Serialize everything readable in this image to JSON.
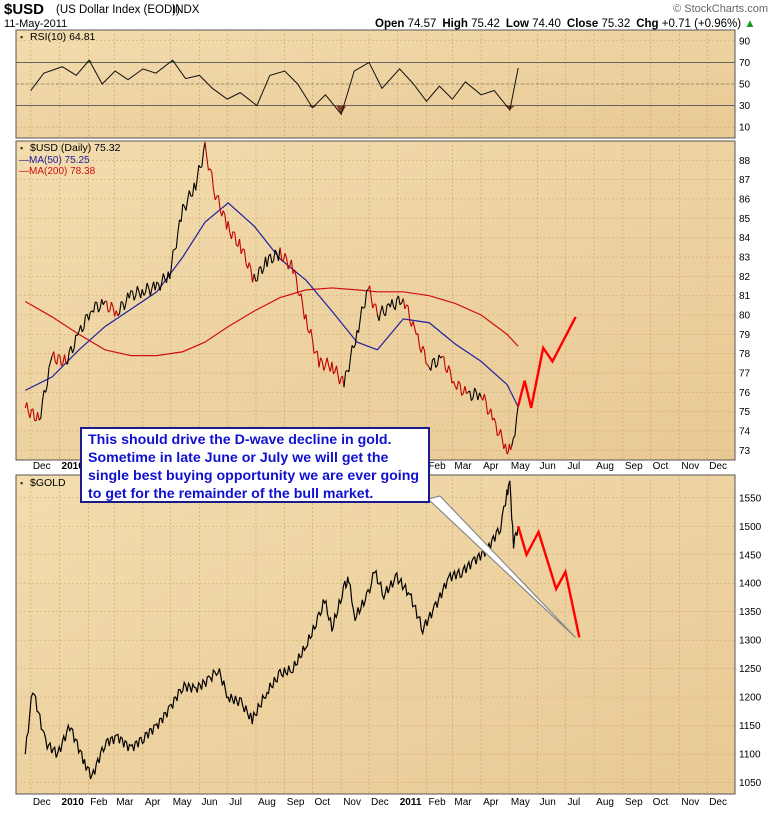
{
  "header": {
    "symbol": "$USD",
    "description": "(US Dollar Index (EOD))",
    "exchange": "INDX",
    "date": "11-May-2011",
    "quote_parts": [
      {
        "label": "Open",
        "value": "74.57"
      },
      {
        "label": "High",
        "value": "75.42"
      },
      {
        "label": "Low",
        "value": "74.40"
      },
      {
        "label": "Close",
        "value": "75.32"
      },
      {
        "label": "Chg",
        "value": "+0.71 (+0.96%)"
      }
    ],
    "logo": "© StockCharts.com",
    "change_color": "#1a9a1a"
  },
  "annotation": {
    "lines": [
      "This should drive the D-wave decline in gold.",
      "Sometime in late June or July we will get the",
      "single best buying opportunity we are ever going",
      "to get for the remainder of the bull market."
    ],
    "text_color": "#1010d0"
  },
  "colors": {
    "panel_bg": "#e8c994",
    "rsi_overbought_fill": "#3b7a30",
    "rsi_oversold_fill": "#8a3a2a",
    "ma50": "#2020a0",
    "ma200": "#d01010",
    "price_up": "#000000",
    "price_down": "#c00000",
    "projection": "#ff0000"
  },
  "chart_data": [
    {
      "type": "line",
      "panel": "rsi",
      "title": "RSI(10) 64.81",
      "ylim": [
        0,
        100
      ],
      "y_ticks": [
        10,
        30,
        50,
        70,
        90
      ],
      "reference_lines": [
        30,
        50,
        70
      ],
      "dates": [
        "2009-12-01",
        "2009-12-15",
        "2010-01-04",
        "2010-01-19",
        "2010-02-02",
        "2010-02-16",
        "2010-03-02",
        "2010-03-16",
        "2010-04-01",
        "2010-04-15",
        "2010-05-03",
        "2010-05-17",
        "2010-06-01",
        "2010-06-15",
        "2010-07-01",
        "2010-07-15",
        "2010-08-02",
        "2010-08-16",
        "2010-09-01",
        "2010-09-15",
        "2010-10-01",
        "2010-10-15",
        "2010-11-01",
        "2010-11-15",
        "2010-12-01",
        "2010-12-15",
        "2011-01-03",
        "2011-01-18",
        "2011-02-01",
        "2011-02-15",
        "2011-03-01",
        "2011-03-15",
        "2011-04-01",
        "2011-04-15",
        "2011-05-02",
        "2011-05-11"
      ],
      "values": [
        44,
        60,
        66,
        58,
        72,
        50,
        62,
        54,
        64,
        60,
        72,
        55,
        58,
        46,
        36,
        42,
        30,
        58,
        62,
        50,
        28,
        40,
        22,
        62,
        70,
        46,
        64,
        50,
        34,
        48,
        36,
        52,
        40,
        44,
        26,
        64.81
      ]
    },
    {
      "type": "line",
      "panel": "usd",
      "title": "$USD (Daily) 75.32",
      "legend": [
        {
          "name": "MA(50) 75.25",
          "color": "#2020a0"
        },
        {
          "name": "MA(200) 78.38",
          "color": "#d01010"
        }
      ],
      "legend_position": "top-left",
      "ylim": [
        72.5,
        89
      ],
      "y_ticks": [
        73,
        74,
        75,
        76,
        77,
        78,
        79,
        80,
        81,
        82,
        83,
        84,
        85,
        86,
        87,
        88
      ],
      "x_tick_labels": [
        "Dec",
        "2010",
        "Feb",
        "Mar",
        "Apr",
        "May",
        "Jun",
        "Jul",
        "Aug",
        "Sep",
        "Oct",
        "Nov",
        "Dec",
        "2011",
        "Feb",
        "Mar",
        "Apr",
        "May",
        "Jun",
        "Jul",
        "Aug",
        "Sep",
        "Oct",
        "Nov",
        "Dec"
      ],
      "series": [
        {
          "name": "$USD (Daily)",
          "dates": [
            "2009-11-25",
            "2009-12-10",
            "2009-12-24",
            "2010-01-08",
            "2010-01-22",
            "2010-02-05",
            "2010-02-19",
            "2010-03-05",
            "2010-03-19",
            "2010-04-02",
            "2010-04-16",
            "2010-04-30",
            "2010-05-14",
            "2010-05-28",
            "2010-06-07",
            "2010-06-18",
            "2010-07-02",
            "2010-07-16",
            "2010-07-30",
            "2010-08-13",
            "2010-08-27",
            "2010-09-10",
            "2010-09-24",
            "2010-10-08",
            "2010-10-22",
            "2010-11-04",
            "2010-11-18",
            "2010-11-30",
            "2010-12-10",
            "2010-12-24",
            "2011-01-07",
            "2011-01-21",
            "2011-02-04",
            "2011-02-18",
            "2011-03-04",
            "2011-03-18",
            "2011-04-01",
            "2011-04-15",
            "2011-04-29",
            "2011-05-04",
            "2011-05-11"
          ],
          "values": [
            75.2,
            74.6,
            77.8,
            77.6,
            79.0,
            80.4,
            80.5,
            80.2,
            81.0,
            81.3,
            81.4,
            82.2,
            85.4,
            86.8,
            88.6,
            86.3,
            84.5,
            83.5,
            81.8,
            82.8,
            83.2,
            82.4,
            79.8,
            77.5,
            77.4,
            76.4,
            79.1,
            81.4,
            80.0,
            80.4,
            80.9,
            78.9,
            77.4,
            77.7,
            76.5,
            75.8,
            76.0,
            74.4,
            73.1,
            72.9,
            75.32
          ]
        },
        {
          "name": "MA(50)",
          "dates": [
            "2009-11-25",
            "2009-12-24",
            "2010-01-22",
            "2010-02-19",
            "2010-03-19",
            "2010-04-16",
            "2010-05-14",
            "2010-06-07",
            "2010-07-02",
            "2010-07-30",
            "2010-08-27",
            "2010-09-24",
            "2010-10-22",
            "2010-11-18",
            "2010-12-10",
            "2011-01-07",
            "2011-02-04",
            "2011-03-04",
            "2011-04-01",
            "2011-04-29",
            "2011-05-11"
          ],
          "values": [
            76.1,
            76.8,
            78.2,
            79.4,
            80.3,
            81.2,
            83.0,
            84.8,
            85.8,
            84.6,
            82.9,
            81.8,
            80.2,
            78.6,
            78.2,
            79.8,
            79.6,
            78.5,
            77.6,
            76.4,
            75.25
          ]
        },
        {
          "name": "MA(200)",
          "dates": [
            "2009-11-25",
            "2009-12-24",
            "2010-01-22",
            "2010-02-19",
            "2010-03-19",
            "2010-04-16",
            "2010-05-14",
            "2010-06-07",
            "2010-07-02",
            "2010-07-30",
            "2010-08-27",
            "2010-09-24",
            "2010-10-22",
            "2010-11-18",
            "2010-12-10",
            "2011-01-07",
            "2011-02-04",
            "2011-03-04",
            "2011-04-01",
            "2011-04-29",
            "2011-05-11"
          ],
          "values": [
            80.7,
            79.9,
            79.0,
            78.2,
            77.9,
            77.9,
            78.1,
            78.6,
            79.4,
            80.2,
            80.9,
            81.3,
            81.4,
            81.3,
            81.2,
            81.2,
            81.0,
            80.6,
            80.0,
            79.0,
            78.38
          ]
        }
      ],
      "projection": {
        "dates": [
          "2011-05-11",
          "2011-05-18",
          "2011-05-25",
          "2011-06-07",
          "2011-06-17",
          "2011-07-12"
        ],
        "values": [
          75.3,
          76.6,
          75.2,
          78.3,
          77.6,
          79.9
        ]
      }
    },
    {
      "type": "line",
      "panel": "gold",
      "title": "$GOLD",
      "ylim": [
        1030,
        1590
      ],
      "y_ticks": [
        1050,
        1100,
        1150,
        1200,
        1250,
        1300,
        1350,
        1400,
        1450,
        1500,
        1550
      ],
      "x_tick_labels": [
        "Dec",
        "2010",
        "Feb",
        "Mar",
        "Apr",
        "May",
        "Jun",
        "Jul",
        "Aug",
        "Sep",
        "Oct",
        "Nov",
        "Dec",
        "2011",
        "Feb",
        "Mar",
        "Apr",
        "May",
        "Jun",
        "Jul",
        "Aug",
        "Sep",
        "Oct",
        "Nov",
        "Dec"
      ],
      "series": [
        {
          "name": "$GOLD",
          "dates": [
            "2009-11-25",
            "2009-12-03",
            "2009-12-17",
            "2009-12-30",
            "2010-01-12",
            "2010-01-28",
            "2010-02-05",
            "2010-02-19",
            "2010-03-05",
            "2010-03-19",
            "2010-04-02",
            "2010-04-16",
            "2010-04-30",
            "2010-05-14",
            "2010-05-28",
            "2010-06-11",
            "2010-06-21",
            "2010-07-02",
            "2010-07-16",
            "2010-07-28",
            "2010-08-13",
            "2010-08-27",
            "2010-09-10",
            "2010-09-24",
            "2010-10-08",
            "2010-10-14",
            "2010-10-22",
            "2010-11-05",
            "2010-11-09",
            "2010-11-16",
            "2010-11-30",
            "2010-12-07",
            "2010-12-17",
            "2010-12-31",
            "2011-01-14",
            "2011-01-28",
            "2011-02-11",
            "2011-02-25",
            "2011-03-11",
            "2011-03-25",
            "2011-04-08",
            "2011-04-22",
            "2011-04-29",
            "2011-05-02",
            "2011-05-06",
            "2011-05-11"
          ],
          "values": [
            1100,
            1215,
            1120,
            1100,
            1150,
            1085,
            1060,
            1120,
            1130,
            1110,
            1130,
            1150,
            1180,
            1220,
            1215,
            1230,
            1250,
            1200,
            1190,
            1160,
            1210,
            1240,
            1250,
            1290,
            1340,
            1370,
            1320,
            1395,
            1405,
            1340,
            1380,
            1420,
            1380,
            1410,
            1380,
            1320,
            1360,
            1410,
            1420,
            1440,
            1460,
            1500,
            1560,
            1575,
            1470,
            1500
          ]
        }
      ],
      "projection": {
        "dates": [
          "2011-05-11",
          "2011-05-20",
          "2011-06-02",
          "2011-06-21",
          "2011-07-01",
          "2011-07-16"
        ],
        "values": [
          1500,
          1450,
          1490,
          1390,
          1420,
          1305
        ]
      }
    }
  ]
}
